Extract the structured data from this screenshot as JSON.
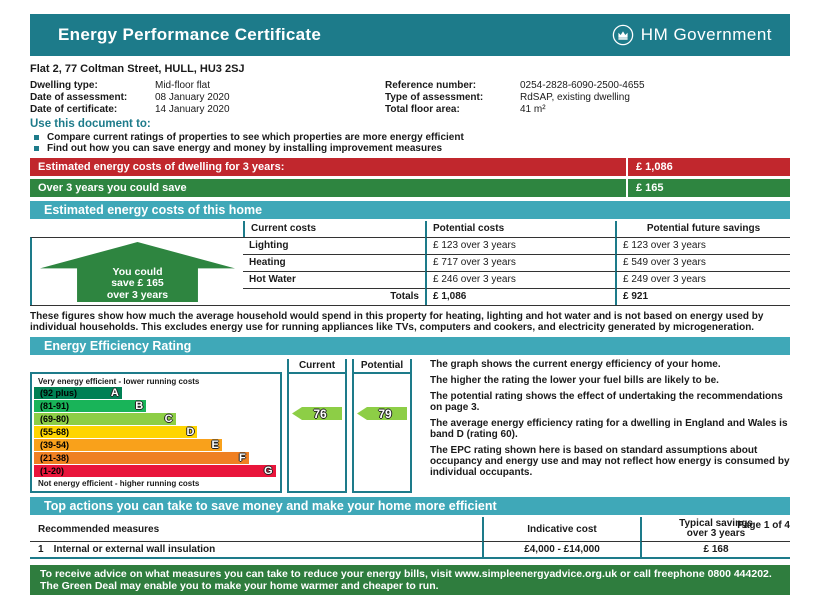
{
  "header": {
    "title": "Energy Performance Certificate",
    "gov_label": "HM Government"
  },
  "address": "Flat 2, 77 Coltman Street, HULL, HU3 2SJ",
  "details": {
    "left": [
      {
        "label": "Dwelling type:",
        "value": "Mid-floor flat"
      },
      {
        "label": "Date of assessment:",
        "value": "08  January  2020"
      },
      {
        "label": "Date of certificate:",
        "value": "14  January  2020"
      }
    ],
    "right": [
      {
        "label": "Reference number:",
        "value": "0254-2828-6090-2500-4655"
      },
      {
        "label": "Type of assessment:",
        "value": "RdSAP, existing dwelling"
      },
      {
        "label": "Total floor area:",
        "value": "41 m²"
      }
    ]
  },
  "use_document": {
    "heading": "Use this document to:",
    "bullets": [
      "Compare current ratings of properties to see which properties are more energy efficient",
      "Find out how you can save energy and money by installing improvement measures"
    ]
  },
  "banners": {
    "estimated_costs": {
      "label": "Estimated energy costs of dwelling for 3 years:",
      "value": "£ 1,086"
    },
    "savings": {
      "label": "Over 3 years you could save",
      "value": "£ 165"
    }
  },
  "costs_section": {
    "title": "Estimated energy costs of this home",
    "headers": {
      "current": "Current costs",
      "potential": "Potential costs",
      "future": "Potential future savings"
    },
    "rows": [
      {
        "name": "Lighting",
        "current": "£ 123 over 3 years",
        "potential": "£ 123 over 3 years"
      },
      {
        "name": "Heating",
        "current": "£ 717 over 3 years",
        "potential": "£ 549 over 3 years"
      },
      {
        "name": "Hot Water",
        "current": "£ 246 over 3 years",
        "potential": "£ 249 over 3 years"
      }
    ],
    "totals": {
      "label": "Totals",
      "current": "£ 1,086",
      "potential": "£ 921"
    },
    "future_arrow": {
      "line1": "You could",
      "line2": "save £ 165",
      "line3": "over 3 years"
    },
    "note": "These figures show how much the average household would spend in this property for heating, lighting and hot water and is not based on energy used by individual households. This excludes energy use for running appliances like TVs, computers and cookers, and electricity generated by microgeneration."
  },
  "rating_section": {
    "title": "Energy Efficiency Rating",
    "top_label": "Very energy efficient - lower running costs",
    "bottom_label": "Not energy efficient - higher running costs",
    "bands": [
      {
        "range": "(92 plus)",
        "letter": "A",
        "color": "#008054",
        "width_pct": 36
      },
      {
        "range": "(81-91)",
        "letter": "B",
        "color": "#19b459",
        "width_pct": 46
      },
      {
        "range": "(69-80)",
        "letter": "C",
        "color": "#8dce46",
        "width_pct": 58
      },
      {
        "range": "(55-68)",
        "letter": "D",
        "color": "#ffd500",
        "width_pct": 67
      },
      {
        "range": "(39-54)",
        "letter": "E",
        "color": "#f9a11b",
        "width_pct": 77
      },
      {
        "range": "(21-38)",
        "letter": "F",
        "color": "#ef8023",
        "width_pct": 88
      },
      {
        "range": "(1-20)",
        "letter": "G",
        "color": "#e9153b",
        "width_pct": 99
      }
    ],
    "columns": {
      "current": "Current",
      "potential": "Potential"
    },
    "current_value": "76",
    "potential_value": "79",
    "pointer_color": "#8dce46",
    "notes": [
      "The graph shows the current energy efficiency of your home.",
      "The higher the rating the lower your fuel bills are likely to be.",
      "The potential rating shows the effect of undertaking the recommendations on page 3.",
      "The average energy efficiency rating for a dwelling in England and Wales is band D (rating 60).",
      "The EPC rating shown here is based on standard assumptions about occupancy and energy use and may not reflect how energy is consumed by individual occupants."
    ]
  },
  "chart_data": {
    "type": "bar",
    "title": "Energy Efficiency Rating",
    "categories": [
      "A (92 plus)",
      "B (81-91)",
      "C (69-80)",
      "D (55-68)",
      "E (39-54)",
      "F (21-38)",
      "G (1-20)"
    ],
    "values": [
      36,
      46,
      58,
      67,
      77,
      88,
      99
    ],
    "annotations": [
      {
        "label": "Current",
        "value": 76,
        "band": "C"
      },
      {
        "label": "Potential",
        "value": 79,
        "band": "C"
      }
    ],
    "xlabel": "",
    "ylabel": "",
    "legend_position": "none"
  },
  "actions_section": {
    "title": "Top actions you can take to save money and make your home more efficient",
    "headers": {
      "measures": "Recommended measures",
      "cost": "Indicative cost",
      "savings_line1": "Typical savings",
      "savings_line2": "over 3 years"
    },
    "rows": [
      {
        "num": "1",
        "measure": "Internal or external wall insulation",
        "cost": "£4,000 - £14,000",
        "savings": "£ 168"
      }
    ]
  },
  "advice_banner": "To receive advice on what measures you can take to reduce your energy bills, visit www.simpleenergyadvice.org.uk or call freephone 0800 444202. The Green Deal may enable you to make your home warmer and cheaper to run.",
  "footer": {
    "page": "Page 1 of 4"
  },
  "colors": {
    "teal": "#1d7b8a",
    "teal_light": "#3fa8b8",
    "red": "#c1272d",
    "green": "#2e8540",
    "advice_green": "#2f7d3e"
  }
}
